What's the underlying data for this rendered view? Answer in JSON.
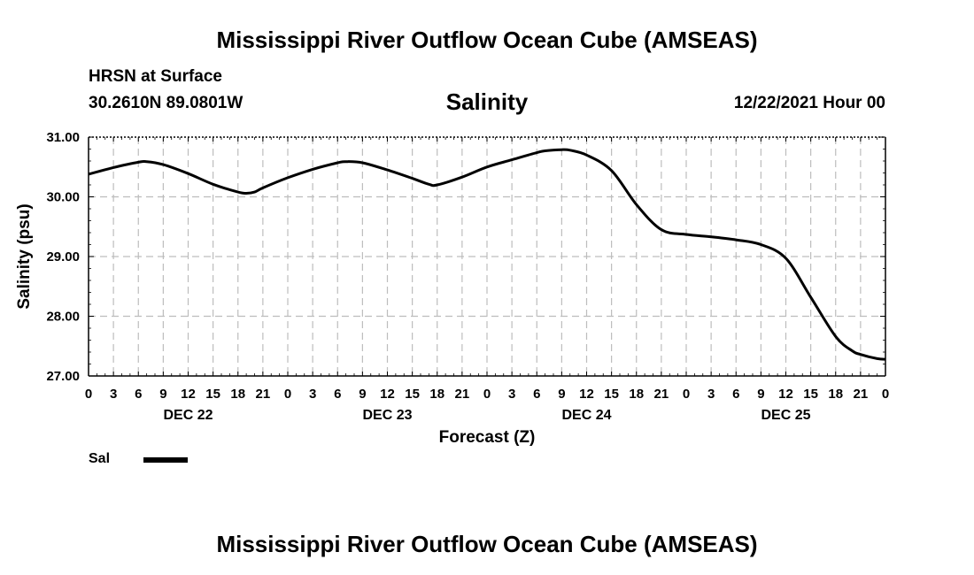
{
  "header": {
    "main_title": "Mississippi River Outflow Ocean Cube (AMSEAS)",
    "station": "HRSN at Surface",
    "coords": "30.2610N  89.0801W",
    "run_time": "12/22/2021 Hour 00"
  },
  "footer": {
    "main_title": "Mississippi River Outflow Ocean Cube (AMSEAS)"
  },
  "legend": {
    "label": "Sal",
    "color": "#000000"
  },
  "chart_data": {
    "type": "line",
    "title": "Salinity",
    "xlabel": "Forecast (Z)",
    "ylabel": "Salinity (psu)",
    "ylim": [
      27.0,
      31.0
    ],
    "xlim": [
      0,
      96
    ],
    "yticks": [
      27.0,
      28.0,
      29.0,
      30.0,
      31.0
    ],
    "ytick_labels": [
      "27.00",
      "28.00",
      "29.00",
      "30.00",
      "31.00"
    ],
    "xticks": [
      0,
      3,
      6,
      9,
      12,
      15,
      18,
      21,
      24,
      27,
      30,
      33,
      36,
      39,
      42,
      45,
      48,
      51,
      54,
      57,
      60,
      63,
      66,
      69,
      72,
      75,
      78,
      81,
      84,
      87,
      90,
      93,
      96
    ],
    "xtick_labels": [
      "0",
      "3",
      "6",
      "9",
      "12",
      "15",
      "18",
      "21",
      "0",
      "3",
      "6",
      "9",
      "12",
      "15",
      "18",
      "21",
      "0",
      "3",
      "6",
      "9",
      "12",
      "15",
      "18",
      "21",
      "0",
      "3",
      "6",
      "9",
      "12",
      "15",
      "18",
      "21",
      "0"
    ],
    "day_labels": [
      {
        "x": 12,
        "label": "DEC 22"
      },
      {
        "x": 36,
        "label": "DEC 23"
      },
      {
        "x": 60,
        "label": "DEC 24"
      },
      {
        "x": 84,
        "label": "DEC 25"
      }
    ],
    "grid": true,
    "series": [
      {
        "name": "Sal",
        "color": "#000000",
        "x": [
          0,
          3,
          6,
          7,
          9,
          12,
          15,
          18,
          19,
          20,
          21,
          24,
          27,
          30,
          31,
          33,
          36,
          39,
          41,
          42,
          45,
          48,
          51,
          54,
          55,
          57,
          58,
          60,
          63,
          66,
          69,
          72,
          75,
          78,
          81,
          84,
          87,
          90,
          92,
          93,
          95,
          96
        ],
        "y": [
          30.38,
          30.49,
          30.58,
          30.59,
          30.54,
          30.39,
          30.21,
          30.08,
          30.06,
          30.08,
          30.15,
          30.32,
          30.46,
          30.57,
          30.59,
          30.57,
          30.45,
          30.31,
          30.21,
          30.2,
          30.33,
          30.5,
          30.62,
          30.74,
          30.77,
          30.79,
          30.78,
          30.7,
          30.44,
          29.87,
          29.45,
          29.37,
          29.33,
          29.28,
          29.2,
          28.97,
          28.32,
          27.66,
          27.42,
          27.36,
          27.29,
          27.28
        ]
      }
    ]
  }
}
